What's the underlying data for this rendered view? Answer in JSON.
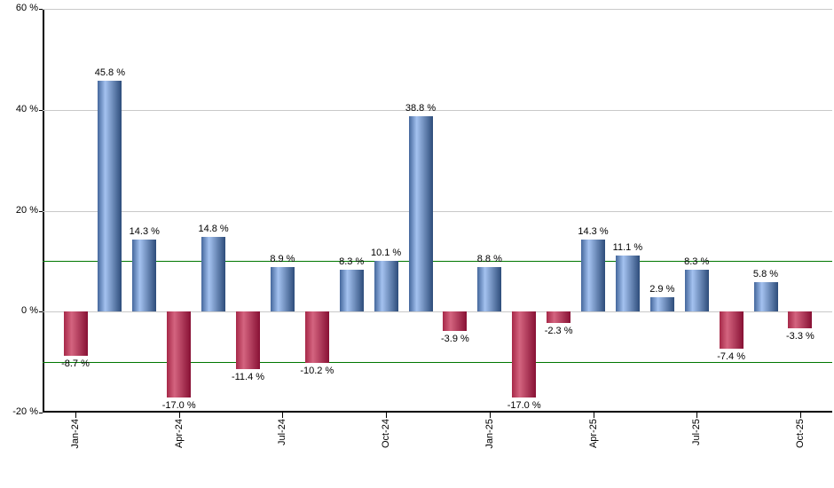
{
  "chart_data": {
    "type": "bar",
    "title": "",
    "xlabel": "",
    "ylabel": "",
    "x": [
      "Jan-24",
      "Feb-24",
      "Mar-24",
      "Apr-24",
      "May-24",
      "Jun-24",
      "Jul-24",
      "Aug-24",
      "Sep-24",
      "Oct-24",
      "Nov-24",
      "Dec-24",
      "Jan-25",
      "Feb-25",
      "Mar-25",
      "Apr-25",
      "May-25",
      "Jun-25",
      "Jul-25",
      "Aug-25",
      "Sep-25",
      "Oct-25"
    ],
    "values": [
      -8.7,
      45.8,
      14.3,
      -17.0,
      14.8,
      -11.4,
      8.9,
      -10.2,
      8.3,
      10.1,
      38.8,
      -3.9,
      8.8,
      -17.0,
      -2.3,
      14.3,
      11.1,
      2.9,
      8.3,
      -7.4,
      5.8,
      -3.3
    ],
    "bar_labels": [
      "-8.7 %",
      "45.8 %",
      "14.3 %",
      "-17.0 %",
      "14.8 %",
      "-11.4 %",
      "8.9 %",
      "-10.2 %",
      "8.3 %",
      "10.1 %",
      "38.8 %",
      "-3.9 %",
      "8.8 %",
      "-17.0 %",
      "-2.3 %",
      "14.3 %",
      "11.1 %",
      "2.9 %",
      "8.3 %",
      "-7.4 %",
      "5.8 %",
      "-3.3 %"
    ],
    "x_tick_labels": [
      "Jan-24",
      "Apr-24",
      "Jul-24",
      "Oct-24",
      "Jan-25",
      "Apr-25",
      "Jul-25",
      "Oct-25"
    ],
    "x_tick_indices": [
      0,
      3,
      6,
      9,
      12,
      15,
      18,
      21
    ],
    "y_tick_labels": [
      "60 %",
      "40 %",
      "20 %",
      "0 %",
      "-20 %"
    ],
    "y_tick_values": [
      60,
      40,
      20,
      0,
      -20
    ],
    "grid_values": [
      60,
      40,
      20,
      0
    ],
    "reference_lines": [
      10,
      -10
    ],
    "ylim": [
      -20,
      60
    ],
    "legend_position": "none",
    "grid": "on",
    "colors": {
      "positive_edge_left": "#44679c",
      "positive_light": "#a4c2f0",
      "positive_edge_right": "#2d4c7a",
      "negative_edge_left": "#a62848",
      "negative_light": "#d4647f",
      "negative_edge_right": "#871034",
      "reference_line": "#007700",
      "gridline": "#c9c9c9",
      "axis": "#000000",
      "label_text": "#000000"
    }
  }
}
